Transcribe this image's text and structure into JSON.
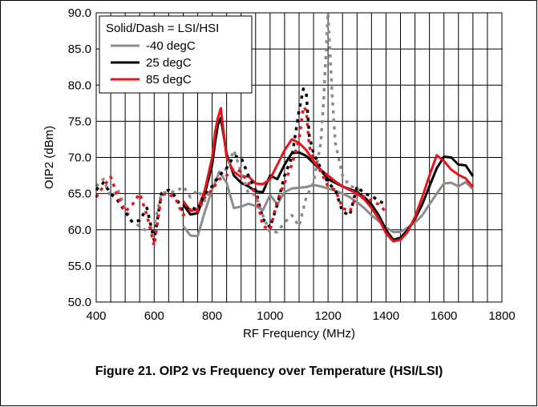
{
  "figure": {
    "caption": "Figure 21. OIP2 vs Frequency over Temperature (HSI/LSI)"
  },
  "chart_data": {
    "type": "line",
    "xlabel": "RF Frequency (MHz)",
    "ylabel": "OIP2 (dBm)",
    "xlim": [
      400,
      1800
    ],
    "ylim": [
      50,
      90
    ],
    "xticks": [
      400,
      600,
      800,
      1000,
      1200,
      1400,
      1600,
      1800
    ],
    "yticks": [
      50.0,
      55.0,
      60.0,
      65.0,
      70.0,
      75.0,
      80.0,
      85.0,
      90.0
    ],
    "ytick_labels": [
      "50.0",
      "55.0",
      "60.0",
      "65.0",
      "70.0",
      "75.0",
      "80.0",
      "85.0",
      "90.0"
    ],
    "x_minor_step": 50,
    "grid": true,
    "legend": {
      "title": "Solid/Dash = LSI/HSI",
      "placement": "top-left",
      "entries": [
        {
          "label": "-40 degC",
          "color": "#8c8c8c"
        },
        {
          "label": "25 degC",
          "color": "#000000"
        },
        {
          "label": "85 degC",
          "color": "#e8141c"
        }
      ]
    },
    "series": [
      {
        "name": "-40 degC",
        "style": "solid",
        "color": "#8c8c8c",
        "x": [
          700,
          725,
          750,
          775,
          800,
          825,
          850,
          875,
          900,
          925,
          950,
          975,
          1000,
          1025,
          1050,
          1075,
          1100,
          1125,
          1150,
          1175,
          1200,
          1225,
          1250,
          1275,
          1300,
          1325,
          1350,
          1375,
          1400,
          1425,
          1450,
          1475,
          1500,
          1525,
          1550,
          1575,
          1600,
          1625,
          1650,
          1675,
          1700
        ],
        "y": [
          60.5,
          59.2,
          59.1,
          62.5,
          65.5,
          68.0,
          66.5,
          63.0,
          63.2,
          63.6,
          63.3,
          62.7,
          64.8,
          63.5,
          65.2,
          65.7,
          65.8,
          65.9,
          66.2,
          66.0,
          65.7,
          65.4,
          65.0,
          64.5,
          63.8,
          63.0,
          62.0,
          61.2,
          60.3,
          59.7,
          59.7,
          60.3,
          61.0,
          62.0,
          63.5,
          65.0,
          66.4,
          66.5,
          66.0,
          66.6,
          65.6
        ]
      },
      {
        "name": "25 degC",
        "style": "solid",
        "color": "#000000",
        "x": [
          700,
          725,
          750,
          775,
          800,
          810,
          820,
          830,
          850,
          875,
          900,
          925,
          950,
          975,
          1000,
          1025,
          1050,
          1075,
          1100,
          1125,
          1150,
          1175,
          1200,
          1225,
          1250,
          1275,
          1300,
          1325,
          1350,
          1375,
          1400,
          1425,
          1450,
          1475,
          1500,
          1525,
          1550,
          1575,
          1600,
          1625,
          1650,
          1675,
          1700
        ],
        "y": [
          63.5,
          62.1,
          62.3,
          65.0,
          69.0,
          72.0,
          74.5,
          75.5,
          70.5,
          67.5,
          66.5,
          66.0,
          65.3,
          65.2,
          67.5,
          67.0,
          69.0,
          70.6,
          70.7,
          70.2,
          69.2,
          68.3,
          67.0,
          66.5,
          66.0,
          65.6,
          65.2,
          64.5,
          63.5,
          62.0,
          60.0,
          58.6,
          58.9,
          60.0,
          61.5,
          63.5,
          66.0,
          68.5,
          70.1,
          70.0,
          69.0,
          68.9,
          67.4
        ]
      },
      {
        "name": "85 degC",
        "style": "solid",
        "color": "#e8141c",
        "x": [
          700,
          725,
          750,
          775,
          800,
          810,
          820,
          830,
          850,
          875,
          900,
          925,
          950,
          975,
          1000,
          1025,
          1050,
          1075,
          1100,
          1125,
          1150,
          1175,
          1200,
          1225,
          1250,
          1275,
          1300,
          1325,
          1350,
          1375,
          1400,
          1425,
          1450,
          1475,
          1500,
          1525,
          1550,
          1575,
          1600,
          1625,
          1650,
          1675,
          1700
        ],
        "y": [
          64.0,
          62.6,
          62.8,
          65.5,
          70.0,
          73.5,
          75.5,
          76.8,
          70.0,
          68.0,
          67.3,
          67.4,
          66.4,
          66.3,
          67.0,
          69.0,
          71.0,
          72.5,
          72.0,
          71.0,
          69.5,
          68.3,
          67.5,
          66.7,
          66.0,
          65.5,
          65.0,
          64.2,
          63.0,
          61.5,
          59.5,
          58.4,
          58.6,
          59.7,
          61.8,
          64.5,
          67.5,
          70.3,
          69.5,
          68.3,
          67.6,
          67.1,
          65.9
        ]
      },
      {
        "name": "-40 degC",
        "style": "dash",
        "color": "#8c8c8c",
        "x": [
          400,
          425,
          450,
          475,
          500,
          525,
          550,
          575,
          600,
          625,
          650,
          675,
          700,
          725,
          750,
          775,
          800,
          825,
          850,
          875,
          900,
          925,
          950,
          975,
          1000,
          1025,
          1050,
          1075,
          1100,
          1125,
          1150,
          1175,
          1185,
          1195,
          1200,
          1205,
          1215,
          1225,
          1250,
          1275,
          1300,
          1325
        ],
        "y": [
          66.0,
          67.0,
          64.5,
          65.5,
          63.0,
          61.0,
          60.5,
          59.8,
          60.7,
          65.0,
          65.3,
          65.2,
          66.0,
          64.5,
          65.5,
          64.0,
          66.0,
          68.0,
          68.4,
          71.0,
          68.0,
          65.0,
          64.8,
          62.0,
          59.6,
          59.7,
          61.0,
          62.0,
          60.5,
          64.5,
          66.5,
          72.0,
          78.0,
          86.0,
          90.0,
          86.0,
          78.0,
          72.0,
          67.5,
          66.0,
          65.8,
          64.5
        ]
      },
      {
        "name": "25 degC",
        "style": "dash",
        "color": "#000000",
        "x": [
          400,
          425,
          450,
          475,
          500,
          525,
          550,
          575,
          600,
          625,
          650,
          675,
          700,
          725,
          750,
          775,
          800,
          825,
          850,
          875,
          900,
          925,
          950,
          975,
          1000,
          1025,
          1050,
          1075,
          1100,
          1115,
          1125,
          1135,
          1150,
          1175,
          1200,
          1225,
          1250,
          1275,
          1300,
          1325,
          1350,
          1375,
          1400
        ],
        "y": [
          65.5,
          66.5,
          65.0,
          64.0,
          62.5,
          61.0,
          61.3,
          63.0,
          58.5,
          65.0,
          65.5,
          64.5,
          62.5,
          63.2,
          62.7,
          65.0,
          66.0,
          67.5,
          68.5,
          70.2,
          70.0,
          67.5,
          65.5,
          61.5,
          60.3,
          63.5,
          67.5,
          70.0,
          76.5,
          79.5,
          79.0,
          73.0,
          70.5,
          68.5,
          66.5,
          65.5,
          62.5,
          62.0,
          66.0,
          65.0,
          64.7,
          64.0,
          63.5
        ]
      },
      {
        "name": "85 degC",
        "style": "dash",
        "color": "#e8141c",
        "x": [
          400,
          425,
          450,
          475,
          500,
          525,
          550,
          575,
          600,
          625,
          650,
          675,
          700,
          725,
          750,
          775,
          800,
          825,
          850,
          875,
          900,
          925,
          950,
          975,
          1000,
          1025,
          1050,
          1075,
          1100,
          1115,
          1125,
          1135,
          1150,
          1175,
          1200,
          1225,
          1250,
          1275,
          1300,
          1325,
          1350,
          1375,
          1400
        ],
        "y": [
          64.5,
          66.0,
          67.3,
          64.5,
          62.5,
          63.5,
          65.0,
          62.0,
          57.8,
          64.8,
          65.0,
          64.2,
          62.0,
          62.8,
          62.5,
          64.5,
          65.5,
          67.0,
          67.5,
          68.5,
          68.0,
          66.5,
          65.0,
          60.5,
          60.0,
          64.0,
          66.5,
          69.0,
          72.5,
          77.0,
          76.5,
          71.5,
          70.0,
          68.0,
          66.0,
          65.5,
          63.0,
          62.5,
          65.0,
          64.5,
          64.0,
          63.5,
          62.5
        ]
      }
    ]
  }
}
